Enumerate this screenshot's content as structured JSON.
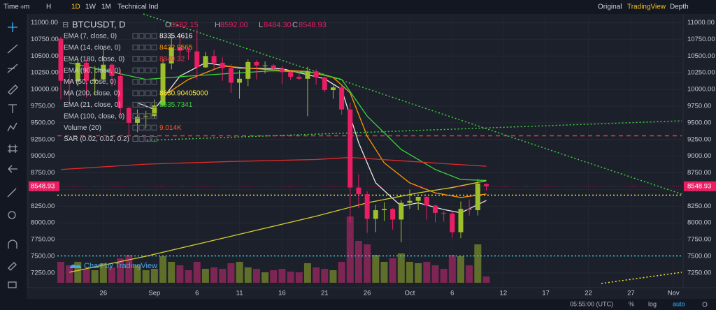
{
  "toolbar": {
    "left": [
      "Time",
      "m",
      "H",
      "1D",
      "1W",
      "1M",
      "Technical Ind"
    ],
    "right": [
      "Original",
      "TradingView",
      "Depth"
    ]
  },
  "header": {
    "symbol": "BTCUSDT, D",
    "o": "O",
    "open": "8582.15",
    "h": "H",
    "high": "8592.00",
    "l": "L",
    "low": "8484.30",
    "c": "C",
    "close": "8548.93"
  },
  "legend": [
    {
      "name": "EMA (7, close, 0)",
      "value": "8335.4616",
      "color": "#ffffff"
    },
    {
      "name": "EMA (14, close, 0)",
      "value": "8432.9565",
      "color": "#ff9800"
    },
    {
      "name": "EMA (180, close, 0)",
      "value": "8849.32",
      "color": "#f23645"
    },
    {
      "name": "EMA (90, close, 0)"
    },
    {
      "name": "MA (50, close, 0)"
    },
    {
      "name": "MA (200, close, 0)",
      "value": "8630.90405000",
      "color": "#f5e83a"
    },
    {
      "name": "EMA (21, close, 0)",
      "value": "8635.7341",
      "color": "#3cd13c"
    },
    {
      "name": "EMA (100, close, 0)"
    },
    {
      "name": "Volume (20)",
      "value": "9.014K",
      "color": "#ff5722"
    },
    {
      "name": "SAR (0.02, 0.02, 0.2)"
    }
  ],
  "watermark": "Chart by TradingView",
  "footer": {
    "time": "05:55:00 (UTC)",
    "percent": "%",
    "log": "log",
    "auto": "auto"
  },
  "chart_data": {
    "type": "candlestick",
    "categories": [
      "Aug 21",
      "Aug 22",
      "Aug 23",
      "Aug 24",
      "Aug 25",
      "Aug 26",
      "Aug 27",
      "Aug 28",
      "Aug 29",
      "Aug 30",
      "Aug 31",
      "Sep 1",
      "Sep 2",
      "Sep 3",
      "Sep 4",
      "Sep 5",
      "Sep 6",
      "Sep 7",
      "Sep 8",
      "Sep 9",
      "Sep 10",
      "Sep 11",
      "Sep 12",
      "Sep 13",
      "Sep 14",
      "Sep 15",
      "Sep 16",
      "Sep 17",
      "Sep 18",
      "Sep 19",
      "Sep 20",
      "Sep 21",
      "Sep 22",
      "Sep 23",
      "Sep 24",
      "Sep 25",
      "Sep 26",
      "Sep 27",
      "Sep 28",
      "Sep 29",
      "Sep 30",
      "Oct 1",
      "Oct 2",
      "Oct 3",
      "Oct 4",
      "Oct 5",
      "Oct 6",
      "Oct 7",
      "Oct 8",
      "Oct 9",
      "Oct 10"
    ],
    "open": [
      10760,
      10130,
      10120,
      10400,
      10130,
      10150,
      10370,
      10200,
      9720,
      9500,
      9590,
      9600,
      9760,
      10390,
      10630,
      10580,
      10570,
      10330,
      10500,
      10400,
      10320,
      10100,
      10160,
      10410,
      10360,
      10360,
      10310,
      10260,
      10190,
      10160,
      10270,
      10180,
      9990,
      10030,
      9700,
      8530,
      8430,
      8060,
      8190,
      8210,
      8050,
      8300,
      8330,
      8390,
      8260,
      8150,
      8140,
      7860,
      8210,
      8190,
      8582.15
    ],
    "high": [
      10790,
      10230,
      10450,
      10440,
      10350,
      10620,
      10390,
      10300,
      9740,
      9700,
      9680,
      9850,
      10460,
      10780,
      10800,
      10630,
      10900,
      10560,
      10590,
      10480,
      10380,
      10290,
      10450,
      10440,
      10420,
      10380,
      10350,
      10270,
      10280,
      10340,
      10300,
      10190,
      10090,
      10060,
      9800,
      8730,
      8470,
      8270,
      8310,
      8220,
      8340,
      8500,
      8390,
      8400,
      8270,
      8180,
      8170,
      8320,
      8350,
      8660,
      8592
    ],
    "low": [
      9850,
      9780,
      10050,
      9880,
      9920,
      10140,
      10050,
      9600,
      9320,
      9360,
      9420,
      9570,
      9740,
      10300,
      10430,
      10440,
      10150,
      10320,
      10300,
      10130,
      9950,
      9860,
      10050,
      10150,
      10240,
      10260,
      10080,
      10140,
      10140,
      9600,
      10070,
      9960,
      9860,
      9620,
      8000,
      8220,
      7850,
      7860,
      8030,
      7900,
      7710,
      8210,
      8190,
      8050,
      8010,
      8020,
      7780,
      7770,
      8110,
      8110,
      8484.3
    ],
    "close": [
      10130,
      10120,
      10400,
      10130,
      10150,
      10370,
      10200,
      9720,
      9500,
      9590,
      9600,
      9760,
      10390,
      10630,
      10580,
      10570,
      10330,
      10500,
      10400,
      10320,
      10100,
      10160,
      10410,
      10360,
      10360,
      10310,
      10260,
      10190,
      10160,
      10270,
      10180,
      9990,
      10030,
      9700,
      8530,
      8430,
      8060,
      8190,
      8210,
      8050,
      8300,
      8330,
      8390,
      8260,
      8150,
      8140,
      7860,
      8210,
      8190,
      8590,
      8548.93
    ],
    "volume": [
      30,
      25,
      30,
      20,
      18,
      28,
      22,
      35,
      40,
      25,
      18,
      20,
      38,
      30,
      25,
      18,
      30,
      20,
      22,
      20,
      28,
      30,
      22,
      20,
      15,
      18,
      20,
      16,
      15,
      28,
      22,
      20,
      18,
      30,
      95,
      60,
      55,
      40,
      30,
      35,
      42,
      30,
      28,
      30,
      25,
      20,
      40,
      38,
      25,
      55,
      9.014
    ],
    "up_color": "#9cbf2b",
    "down_color": "#e91e63",
    "up_volume_color": "#5f6e2a",
    "down_volume_color": "#7d2553",
    "ylim": [
      7050,
      11110
    ],
    "volume_lim": [
      0,
      100
    ],
    "yticks": [
      {
        "value": 11000,
        "label": "11000.00"
      },
      {
        "value": 10750,
        "label": "10750.00"
      },
      {
        "value": 10500,
        "label": "10500.00"
      },
      {
        "value": 10250,
        "label": "10250.00"
      },
      {
        "value": 10000,
        "label": "10000.00"
      },
      {
        "value": 9750,
        "label": "9750.00"
      },
      {
        "value": 9500,
        "label": "9500.00"
      },
      {
        "value": 9250,
        "label": "9250.00"
      },
      {
        "value": 9000,
        "label": "9000.00"
      },
      {
        "value": 8750,
        "label": "8750.00"
      },
      {
        "value": 8500,
        "label": "8500.00"
      },
      {
        "value": 8250,
        "label": "8250.00"
      },
      {
        "value": 8000,
        "label": "8000.00"
      },
      {
        "value": 7750,
        "label": "7750.00"
      },
      {
        "value": 7500,
        "label": "7500.00"
      },
      {
        "value": 7250,
        "label": "7250.00"
      }
    ],
    "xticks": [
      {
        "value": "Aug 26",
        "label": "26"
      },
      {
        "value": "Sep 1",
        "label": "Sep"
      },
      {
        "value": "Sep 6",
        "label": "6"
      },
      {
        "value": "Sep 11",
        "label": "11"
      },
      {
        "value": "Sep 16",
        "label": "16"
      },
      {
        "value": "Sep 21",
        "label": "21"
      },
      {
        "value": "Sep 26",
        "label": "26"
      },
      {
        "value": "Oct 1",
        "label": "Oct"
      },
      {
        "value": "Oct 6",
        "label": "6"
      },
      {
        "value": "Oct 12",
        "label": "12"
      },
      {
        "value": "Oct 17",
        "label": "17"
      },
      {
        "value": "Oct 22",
        "label": "22"
      },
      {
        "value": "Oct 27",
        "label": "27"
      },
      {
        "value": "Nov 1",
        "label": "Nov"
      }
    ],
    "last_price": {
      "value": 8548.93,
      "label": "8548.93",
      "color": "#e91e63"
    },
    "horizontal_lines": [
      {
        "value": 9305,
        "color": "#f23645",
        "dash": "6 5"
      },
      {
        "value": 8415,
        "color": "#f5e83a",
        "dash": "2 3"
      },
      {
        "value": 7505,
        "color": "#33d6e0",
        "dash": "2 3"
      }
    ],
    "lines": [
      {
        "color": "#e8e8e8",
        "x": [
          "Aug 30",
          "Sep 1",
          "Sep 4",
          "Sep 7",
          "Sep 11",
          "Sep 16",
          "Sep 21",
          "Sep 23",
          "Sep 25",
          "Sep 27",
          "Sep 30",
          "Oct 2",
          "Oct 5",
          "Oct 7",
          "Oct 10"
        ],
        "values": [
          9800,
          9700,
          10200,
          10400,
          10320,
          10310,
          10160,
          10000,
          9200,
          8600,
          8250,
          8300,
          8200,
          8150,
          8335
        ]
      },
      {
        "color": "#ff9800",
        "x": [
          "Sep 2",
          "Sep 5",
          "Sep 9",
          "Sep 14",
          "Sep 19",
          "Sep 22",
          "Sep 24",
          "Sep 26",
          "Sep 28",
          "Oct 1",
          "Oct 4",
          "Oct 7",
          "Oct 10"
        ],
        "values": [
          9900,
          10150,
          10350,
          10300,
          10270,
          10180,
          9950,
          9300,
          8900,
          8600,
          8450,
          8380,
          8433
        ]
      },
      {
        "color": "#3cd13c",
        "x": [
          "Aug 22",
          "Aug 31",
          "Sep 5",
          "Sep 15",
          "Sep 20",
          "Sep 23",
          "Sep 26",
          "Sep 30",
          "Oct 4",
          "Oct 7",
          "Oct 10"
        ],
        "values": [
          10400,
          10150,
          10200,
          10280,
          10250,
          10150,
          9600,
          9100,
          8800,
          8650,
          8636
        ]
      },
      {
        "color": "#e02b2b",
        "x": [
          "Aug 21",
          "Aug 31",
          "Sep 10",
          "Sep 20",
          "Sep 24",
          "Sep 30",
          "Oct 6",
          "Oct 10"
        ],
        "values": [
          8800,
          8880,
          8920,
          8950,
          8980,
          8930,
          8880,
          8849
        ]
      },
      {
        "color": "#d4cc2a",
        "x": [
          "Aug 22",
          "Aug 31",
          "Sep 10",
          "Sep 20",
          "Sep 26",
          "Oct 2",
          "Oct 6",
          "Oct 10"
        ],
        "values": [
          7260,
          7500,
          7800,
          8100,
          8300,
          8450,
          8530,
          8631
        ]
      }
    ]
  }
}
